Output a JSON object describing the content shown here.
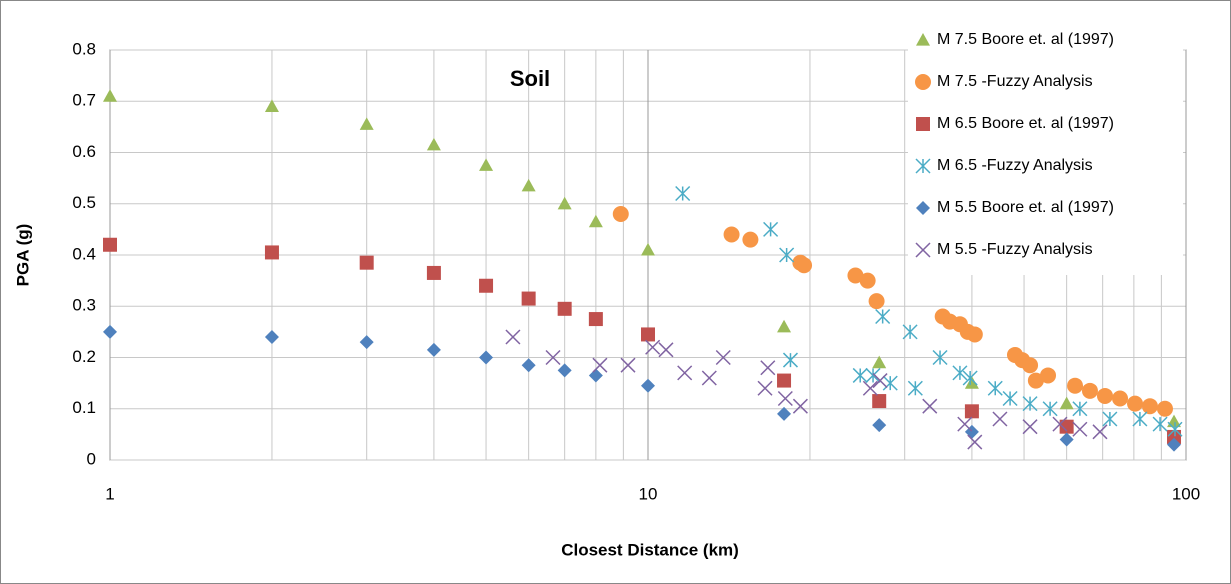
{
  "chart_data": {
    "type": "scatter",
    "title": "Soil",
    "x_label": "Closest Distance (km)",
    "y_label": "PGA (g)",
    "log_x": true,
    "grid": true,
    "legend": "top-right",
    "xlim": [
      1,
      100
    ],
    "xticks": [
      1,
      10,
      100
    ],
    "xminorticks": [
      2,
      3,
      4,
      5,
      6,
      7,
      8,
      9,
      20,
      30,
      40,
      50,
      60,
      70,
      80,
      90
    ],
    "ylim": [
      0,
      0.8
    ],
    "yticks": [
      0,
      0.1,
      0.2,
      0.3,
      0.4,
      0.5,
      0.6,
      0.7,
      0.8
    ],
    "series": [
      {
        "name": "M 7.5 Boore et. al (1997)",
        "color": "#9bbb59",
        "marker": "triangle",
        "x": [
          1,
          2,
          3,
          4,
          5,
          6,
          7,
          8,
          10,
          17.9,
          26.9,
          40,
          60,
          95
        ],
        "values": [
          0.71,
          0.69,
          0.655,
          0.615,
          0.575,
          0.535,
          0.5,
          0.465,
          0.41,
          0.26,
          0.19,
          0.15,
          0.11,
          0.075
        ]
      },
      {
        "name": "M 7.5 -Fuzzy Analysis",
        "color": "#f79646",
        "marker": "circle",
        "x": [
          8.9,
          14.3,
          15.5,
          19.2,
          19.5,
          24.3,
          25.6,
          26.6,
          35.3,
          36.4,
          38.0,
          39.3,
          40.5,
          48.1,
          49.6,
          51.3,
          52.6,
          55.4,
          62.2,
          66.3,
          70.7,
          75.4,
          80.4,
          85.7,
          91.4
        ],
        "values": [
          0.48,
          0.44,
          0.43,
          0.385,
          0.38,
          0.36,
          0.35,
          0.31,
          0.28,
          0.27,
          0.265,
          0.25,
          0.245,
          0.205,
          0.195,
          0.185,
          0.155,
          0.165,
          0.145,
          0.135,
          0.125,
          0.12,
          0.11,
          0.105,
          0.1
        ]
      },
      {
        "name": "M 6.5 Boore et. al (1997)",
        "color": "#c0504d",
        "marker": "square",
        "x": [
          1,
          2,
          3,
          4,
          5,
          6,
          7,
          8,
          10,
          17.9,
          26.9,
          40,
          60,
          95
        ],
        "values": [
          0.42,
          0.405,
          0.385,
          0.365,
          0.34,
          0.315,
          0.295,
          0.275,
          0.245,
          0.155,
          0.115,
          0.095,
          0.065,
          0.045
        ]
      },
      {
        "name": "M 6.5 -Fuzzy Analysis",
        "color": "#4bacc6",
        "marker": "asterisk",
        "x": [
          11.6,
          16.9,
          18.1,
          18.4,
          24.8,
          26.2,
          27.3,
          28.2,
          30.7,
          31.4,
          34.9,
          38.0,
          39.7,
          44.2,
          47.1,
          51.3,
          55.9,
          63.5,
          72.2,
          82.1,
          89.5,
          95.4
        ],
        "values": [
          0.52,
          0.45,
          0.4,
          0.195,
          0.165,
          0.165,
          0.28,
          0.15,
          0.25,
          0.14,
          0.2,
          0.17,
          0.16,
          0.14,
          0.12,
          0.11,
          0.1,
          0.1,
          0.08,
          0.08,
          0.07,
          0.06
        ]
      },
      {
        "name": "M 5.5 Boore et. al (1997)",
        "color": "#4f81bd",
        "marker": "diamond",
        "x": [
          1,
          2,
          3,
          4,
          5,
          6,
          7,
          8,
          10,
          17.9,
          26.9,
          40,
          60,
          95
        ],
        "values": [
          0.25,
          0.24,
          0.23,
          0.215,
          0.2,
          0.185,
          0.175,
          0.165,
          0.145,
          0.09,
          0.068,
          0.055,
          0.04,
          0.03
        ]
      },
      {
        "name": "M 5.5 -Fuzzy Analysis",
        "color": "#8064a2",
        "marker": "x",
        "x": [
          5.61,
          6.66,
          8.14,
          9.18,
          10.2,
          10.8,
          11.7,
          13.0,
          13.8,
          16.7,
          16.5,
          18.0,
          19.2,
          25.9,
          27.0,
          33.4,
          38.8,
          40.5,
          45.1,
          51.3,
          58.3,
          63.5,
          69.2
        ],
        "values": [
          0.24,
          0.2,
          0.185,
          0.185,
          0.22,
          0.215,
          0.17,
          0.16,
          0.2,
          0.18,
          0.14,
          0.12,
          0.105,
          0.14,
          0.155,
          0.105,
          0.07,
          0.035,
          0.08,
          0.065,
          0.07,
          0.06,
          0.055
        ]
      }
    ]
  }
}
